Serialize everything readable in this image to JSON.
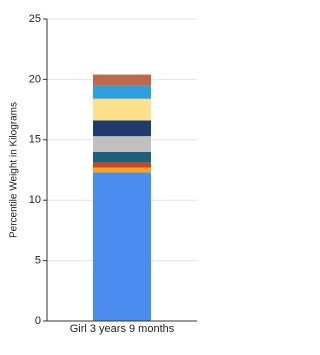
{
  "chart_data": {
    "type": "stacked_bar",
    "y_label": "Percentile Weight in Kilograms",
    "categories": [
      "Girl 3 years 9 months"
    ],
    "series": [
      {
        "color": "#4a8cf0",
        "values": [
          12.3
        ]
      },
      {
        "color": "#f5a623",
        "values": [
          0.4
        ]
      },
      {
        "color": "#d9411e",
        "values": [
          0.4
        ]
      },
      {
        "color": "#1f5f7a",
        "values": [
          0.9
        ]
      },
      {
        "color": "#c0c0c0",
        "values": [
          1.3
        ]
      },
      {
        "color": "#1f3a6e",
        "values": [
          1.3
        ]
      },
      {
        "color": "#fde08a",
        "values": [
          1.8
        ]
      },
      {
        "color": "#2ea0e0",
        "values": [
          1.1
        ]
      },
      {
        "color": "#c0684a",
        "values": [
          0.9
        ]
      }
    ],
    "ylim": [
      0,
      25
    ],
    "yticks": [
      0,
      5,
      10,
      15,
      20,
      25
    ],
    "grid": true
  }
}
